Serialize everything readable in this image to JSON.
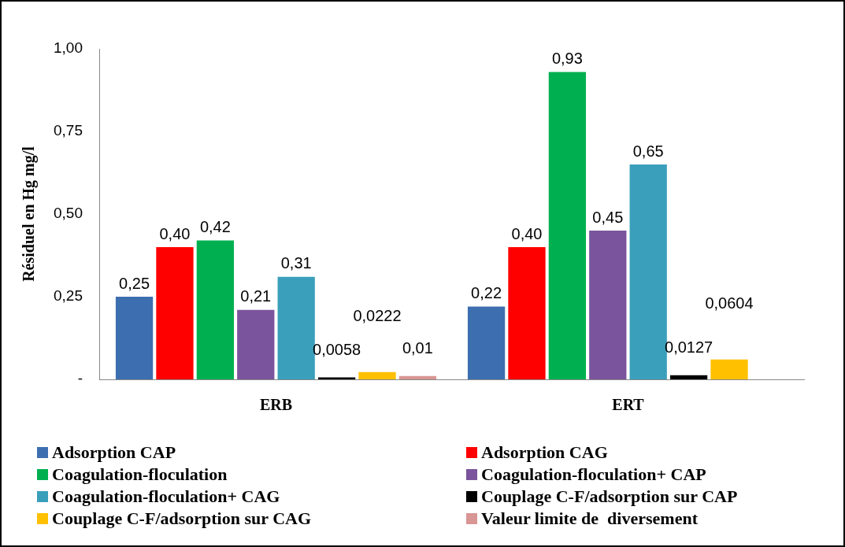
{
  "chart_data": {
    "type": "bar",
    "ylabel": "Résiduel en Hg mg/l",
    "categories": [
      "ERB",
      "ERT"
    ],
    "ylim": [
      0,
      1
    ],
    "yticks": [
      {
        "value": 0,
        "label": "-"
      },
      {
        "value": 0.25,
        "label": "0,25"
      },
      {
        "value": 0.5,
        "label": "0,50"
      },
      {
        "value": 0.75,
        "label": "0,75"
      },
      {
        "value": 1,
        "label": "1,00"
      }
    ],
    "grid": false,
    "legend": "bottom",
    "series": [
      {
        "name": "Adsorption CAP",
        "color": "#3d6fb0",
        "values": [
          0.25,
          0.22
        ],
        "value_labels": [
          "0,25",
          "0,22"
        ]
      },
      {
        "name": "Adsorption CAG",
        "color": "#ff0000",
        "values": [
          0.4,
          0.4
        ],
        "value_labels": [
          "0,40",
          "0,40"
        ]
      },
      {
        "name": "Coagulation-floculation",
        "color": "#00b050",
        "values": [
          0.42,
          0.93
        ],
        "value_labels": [
          "0,42",
          "0,93"
        ]
      },
      {
        "name": "Coagulation-floculation+ CAP",
        "color": "#7a549c",
        "values": [
          0.21,
          0.45
        ],
        "value_labels": [
          "0,21",
          "0,45"
        ]
      },
      {
        "name": "Coagulation-floculation+ CAG",
        "color": "#3a9fbb",
        "values": [
          0.31,
          0.65
        ],
        "value_labels": [
          "0,31",
          "0,65"
        ]
      },
      {
        "name": "Couplage C-F/adsorption sur CAP",
        "color": "#000000",
        "values": [
          0.0058,
          0.0127
        ],
        "value_labels": [
          "0,0058",
          "0,0127"
        ]
      },
      {
        "name": "Couplage C-F/adsorption sur CAG",
        "color": "#ffc000",
        "values": [
          0.0222,
          0.0604
        ],
        "value_labels": [
          "0,0222",
          "0,0604"
        ]
      },
      {
        "name": "Valeur limite de  diversement",
        "color": "#d99694",
        "values": [
          0.01,
          null
        ],
        "value_labels": [
          "0,01",
          null
        ]
      }
    ]
  }
}
